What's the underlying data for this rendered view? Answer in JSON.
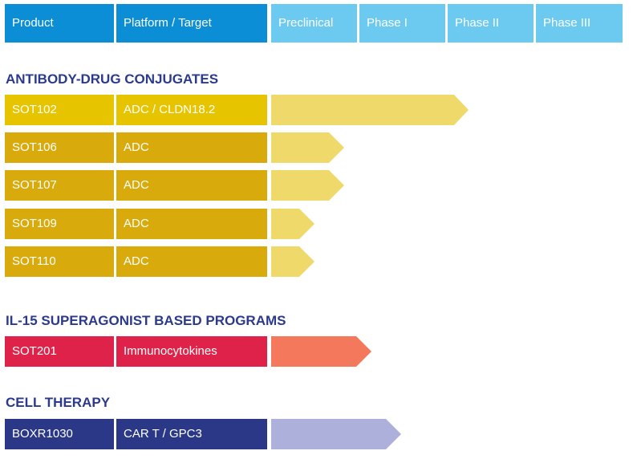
{
  "header": {
    "columns": [
      "Product",
      "Platform / Target",
      "Preclinical",
      "Phase I",
      "Phase II",
      "Phase III"
    ]
  },
  "sections": [
    {
      "title": "ANTIBODY-DRUG CONJUGATES",
      "rows": [
        {
          "product": "SOT102",
          "platform": "ADC / CLDN18.2"
        },
        {
          "product": "SOT106",
          "platform": "ADC"
        },
        {
          "product": "SOT107",
          "platform": "ADC"
        },
        {
          "product": "SOT109",
          "platform": "ADC"
        },
        {
          "product": "SOT110",
          "platform": "ADC"
        }
      ]
    },
    {
      "title": "IL-15 SUPERAGONIST BASED PROGRAMS",
      "rows": [
        {
          "product": "SOT201",
          "platform": "Immunocytokines"
        }
      ]
    },
    {
      "title": "CELL THERAPY",
      "rows": [
        {
          "product": "BOXR1030",
          "platform": "CAR T / GPC3"
        }
      ]
    }
  ]
}
